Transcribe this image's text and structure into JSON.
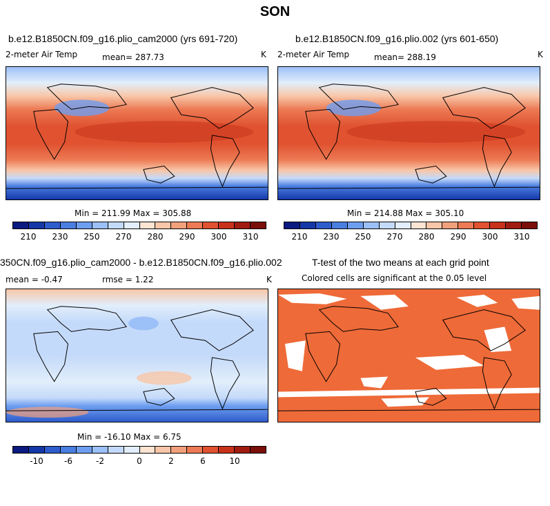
{
  "page_title": "SON",
  "panels": [
    {
      "title": "b.e12.B1850CN.f09_g16.plio_cam2000 (yrs 691-720)",
      "variable": "2-meter Air Temp",
      "mean": "mean= 287.73",
      "units": "K",
      "minmax": "Min = 211.99 Max = 305.88"
    },
    {
      "title": "b.e12.B1850CN.f09_g16.plio.002 (yrs 601-650)",
      "variable": "2-meter Air Temp",
      "mean": "mean= 288.19",
      "units": "K",
      "minmax": "Min = 214.88 Max = 305.10"
    },
    {
      "title": "350CN.f09_g16.plio_cam2000 - b.e12.B1850CN.f09_g16.plio.002",
      "mean": "mean =  -0.47",
      "rmse": "rmse =   1.22",
      "units": "K",
      "minmax": "Min = -16.10 Max =   6.75"
    },
    {
      "title": "T-test of the two means at each grid point",
      "subtitle": "Colored cells are significant at the 0.05 level"
    }
  ],
  "colorbars": {
    "abs": {
      "colors": [
        "#0a1a80",
        "#1438a8",
        "#2e5ccc",
        "#4a7ee0",
        "#6e9ef0",
        "#9cc0f8",
        "#c4dafa",
        "#e2eefb",
        "#fce4d2",
        "#f8c6a8",
        "#f2a07c",
        "#ec7a54",
        "#e05230",
        "#c8321a",
        "#a01c10",
        "#7a0e08"
      ],
      "labels": [
        "210",
        "230",
        "250",
        "270",
        "280",
        "290",
        "300",
        "310"
      ]
    },
    "diff": {
      "colors": [
        "#0a1a80",
        "#1438a8",
        "#2e5ccc",
        "#4a7ee0",
        "#6e9ef0",
        "#9cc0f8",
        "#c4dafa",
        "#e2eefb",
        "#fce4d2",
        "#f8c6a8",
        "#f2a07c",
        "#ec7a54",
        "#e05230",
        "#c8321a",
        "#a01c10",
        "#7a0e08"
      ],
      "labels": [
        "-10",
        "-6",
        "-2",
        "0",
        "2",
        "6",
        "10"
      ]
    }
  },
  "colors": {
    "ttest_fill": "#ee6a38",
    "cold": "#2a50c8",
    "warm": "#e04020"
  }
}
